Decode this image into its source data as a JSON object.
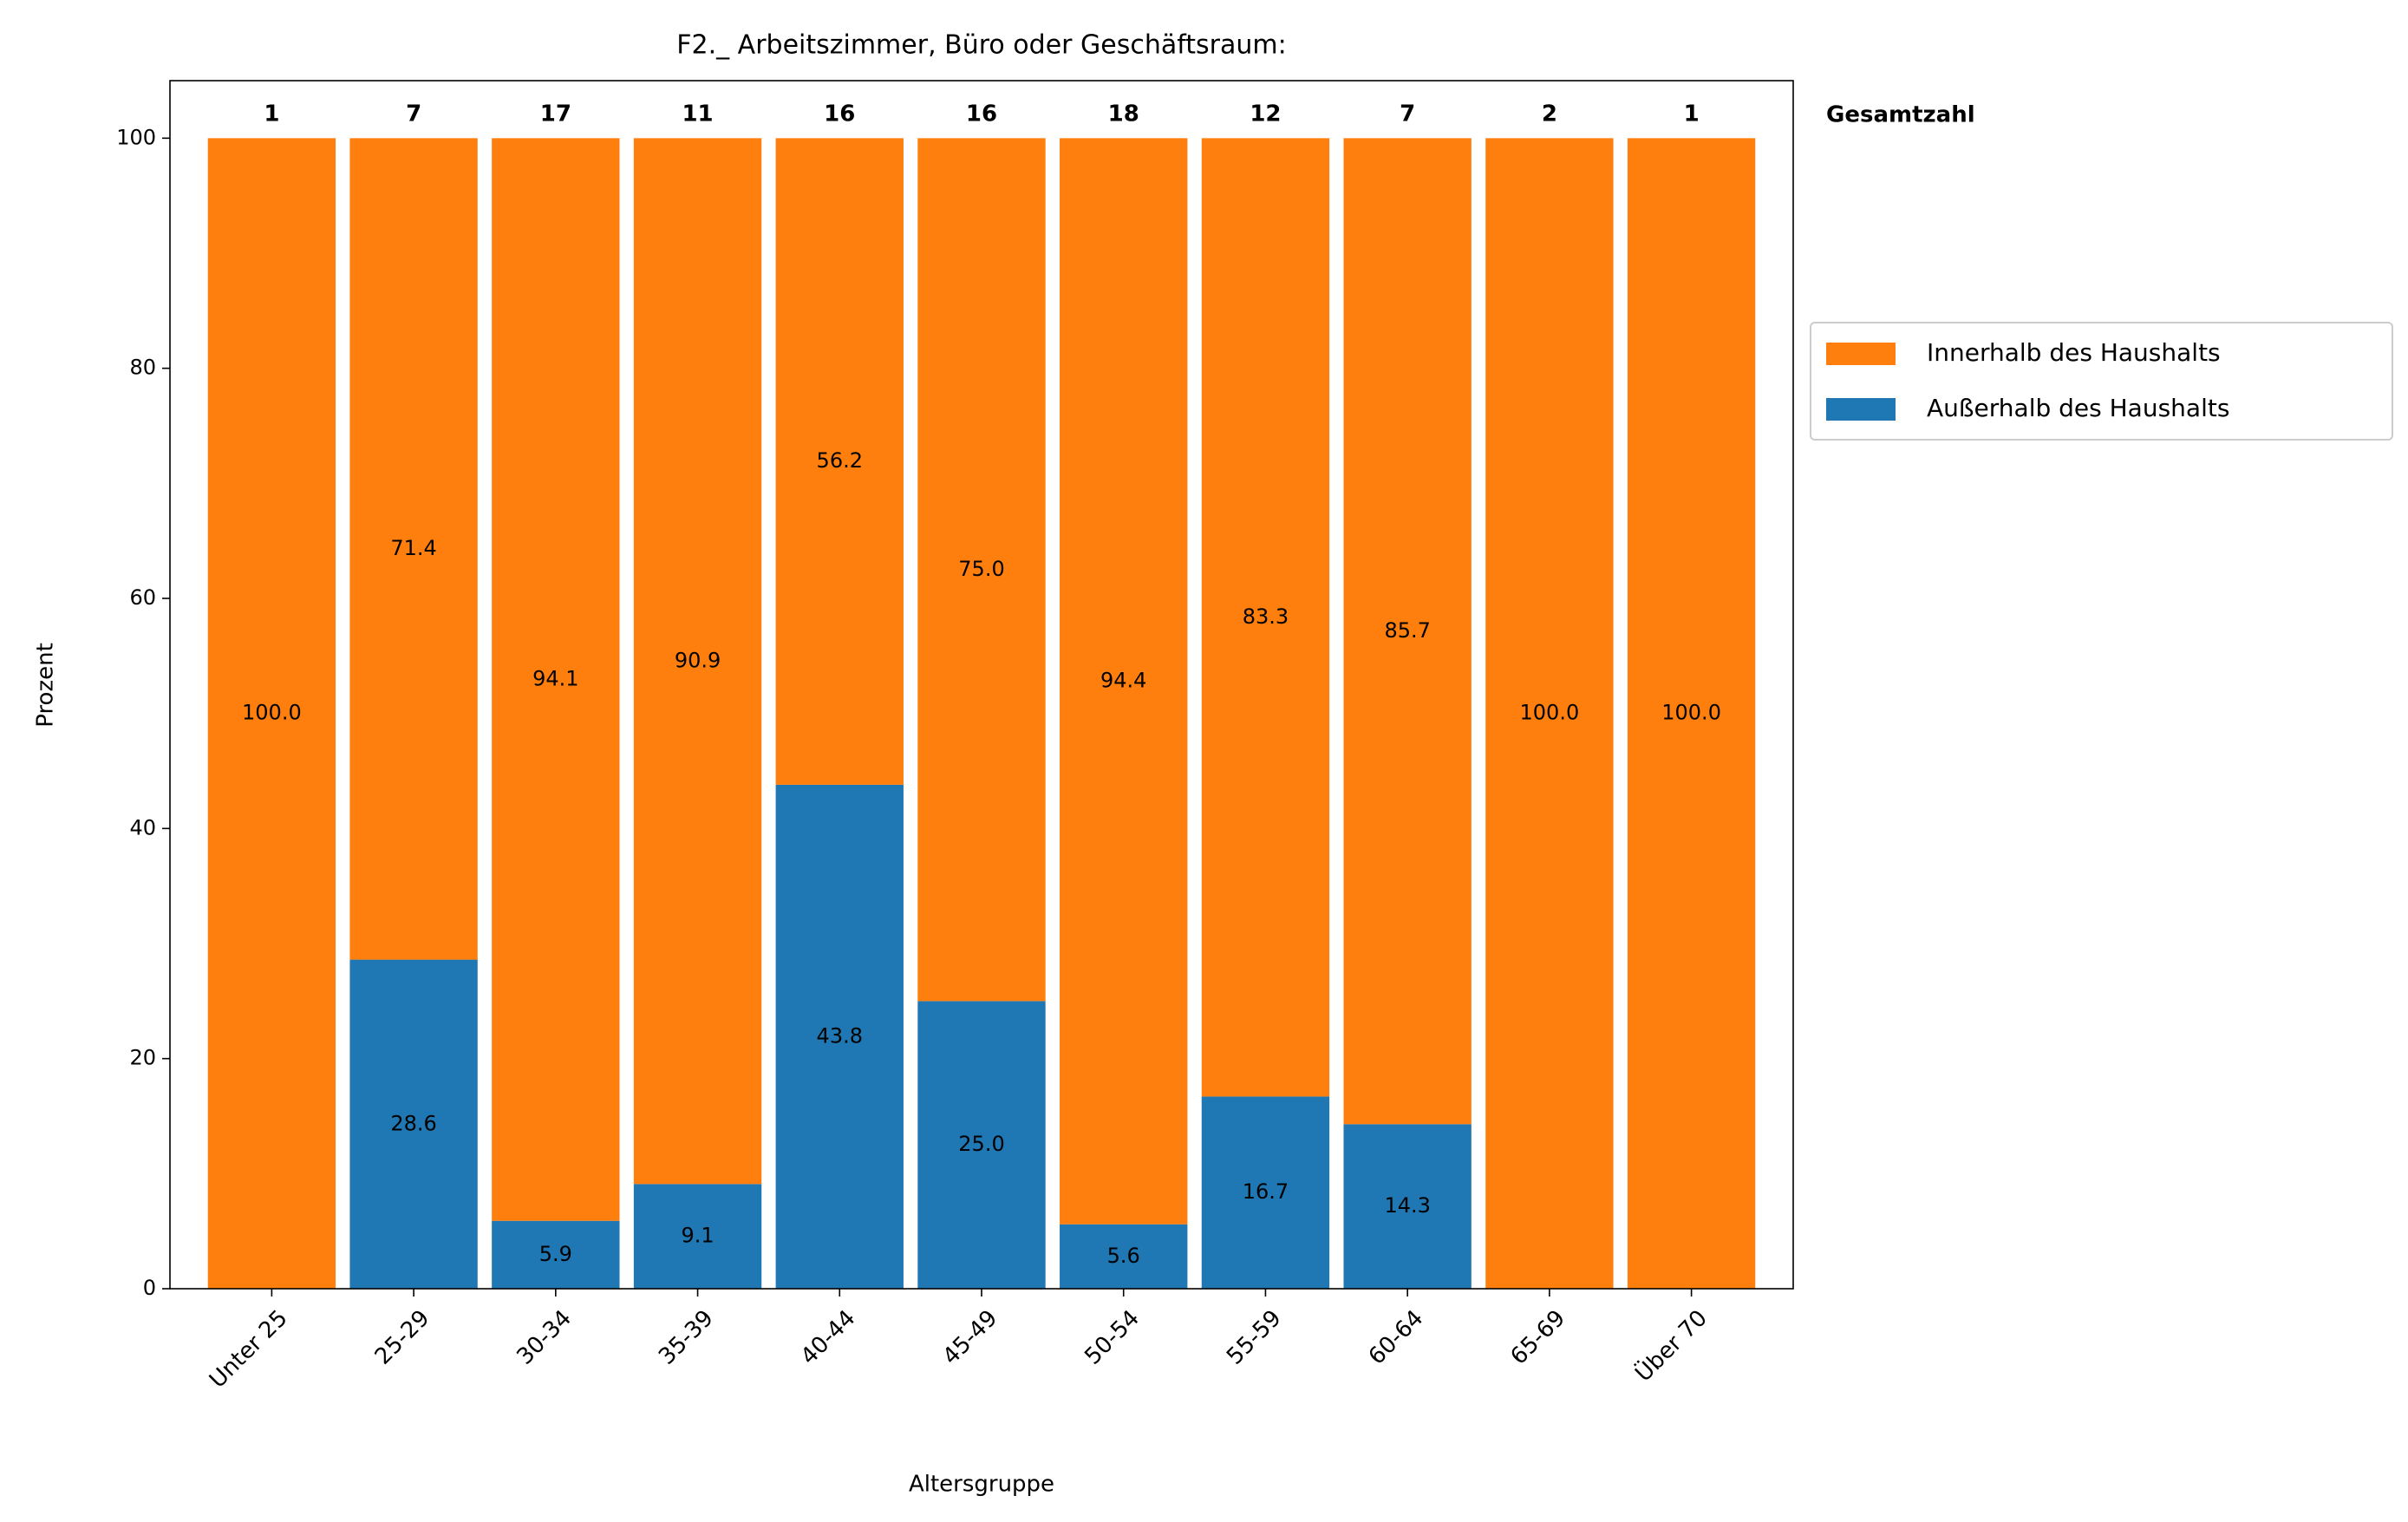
{
  "chart_data": {
    "type": "stacked_bar",
    "title": "F2._ Arbeitszimmer, Büro oder Geschäftsraum:",
    "x_label": "Altersgruppe",
    "y_label": "Prozent",
    "categories": [
      "Unter 25",
      "25-29",
      "30-34",
      "35-39",
      "40-44",
      "45-49",
      "50-54",
      "55-59",
      "60-64",
      "65-69",
      "Über 70"
    ],
    "series": [
      {
        "name": "Innerhalb des Haushalts",
        "color": "#ff7f0e",
        "values": [
          100,
          71.4,
          94.1,
          90.9,
          56.2,
          75.0,
          94.4,
          83.3,
          85.7,
          100,
          100
        ],
        "value_labels": [
          "100.0",
          "71.4",
          "94.1",
          "90.9",
          "56.2",
          "75.0",
          "94.4",
          "83.3",
          "85.7",
          "100.0",
          "100.0"
        ]
      },
      {
        "name": "Außerhalb des Haushalts",
        "color": "#1f77b4",
        "values": [
          0,
          28.6,
          5.9,
          9.1,
          43.8,
          25.0,
          5.6,
          16.7,
          14.3,
          0,
          0
        ],
        "value_labels": [
          null,
          "28.6",
          "5.9",
          "9.1",
          "43.8",
          "25.0",
          "5.6",
          "16.7",
          "14.3",
          null,
          null
        ]
      }
    ],
    "totals": {
      "name": "Gesamtzahl",
      "values": [
        1,
        7,
        17,
        11,
        16,
        16,
        18,
        12,
        7,
        2,
        1
      ]
    },
    "ylim": [
      0,
      105
    ],
    "yticks": [
      0,
      20,
      40,
      60,
      80,
      100
    ],
    "grid": false,
    "legend": "right"
  }
}
